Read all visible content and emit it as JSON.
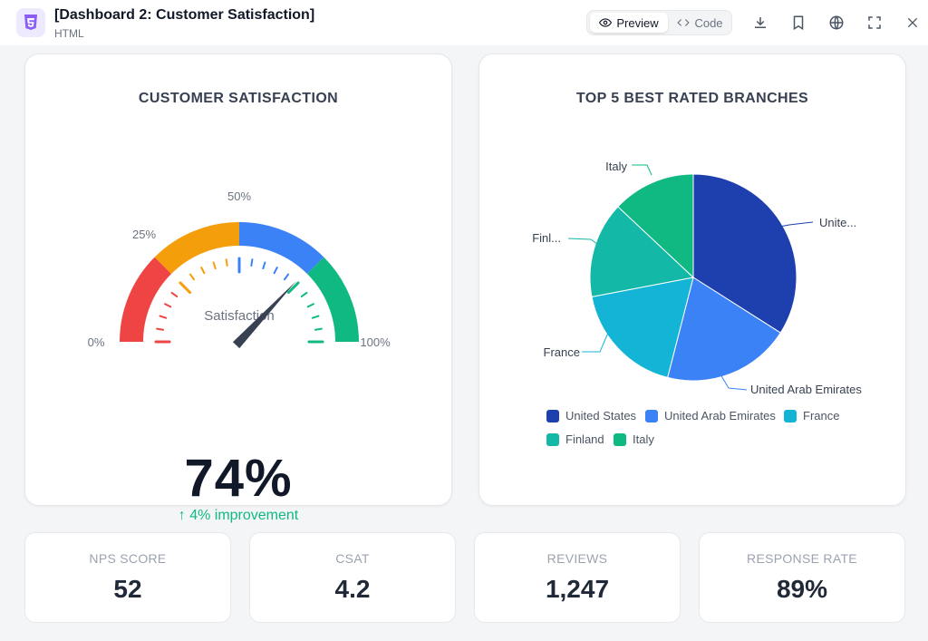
{
  "window": {
    "title": "[Dashboard 2: Customer Satisfaction]",
    "file_type": "HTML",
    "preview_label": "Preview",
    "code_label": "Code"
  },
  "gauge_card": {
    "title": "CUSTOMER SATISFACTION",
    "center_label": "Satisfaction",
    "value": 74,
    "value_text": "74%",
    "improvement_text": "↑ 4% improvement",
    "tick_labels": [
      "0%",
      "25%",
      "50%",
      "100%"
    ],
    "segment_colors": [
      "#ef4444",
      "#f59e0b",
      "#3b82f6",
      "#10b981"
    ]
  },
  "pie_card": {
    "title": "TOP 5 BEST RATED BRANCHES",
    "slice_labels": [
      "Unite...",
      "United Arab Emirates",
      "France",
      "Finl...",
      "Italy"
    ],
    "legend": [
      {
        "name": "United States",
        "color": "#1e40af"
      },
      {
        "name": "United Arab Emirates",
        "color": "#3b82f6"
      },
      {
        "name": "France",
        "color": "#14b4d6"
      },
      {
        "name": "Finland",
        "color": "#14b8a6"
      },
      {
        "name": "Italy",
        "color": "#10b981"
      }
    ]
  },
  "chart_data": {
    "type": "pie",
    "title": "TOP 5 BEST RATED BRANCHES",
    "categories": [
      "United States",
      "United Arab Emirates",
      "France",
      "Finland",
      "Italy"
    ],
    "values": [
      34,
      20,
      18,
      15,
      13
    ],
    "colors": [
      "#1e40af",
      "#3b82f6",
      "#14b4d6",
      "#14b8a6",
      "#10b981"
    ],
    "legend_placement": "bottom"
  },
  "stats": [
    {
      "label": "NPS SCORE",
      "value": "52"
    },
    {
      "label": "CSAT",
      "value": "4.2"
    },
    {
      "label": "REVIEWS",
      "value": "1,247"
    },
    {
      "label": "RESPONSE RATE",
      "value": "89%"
    }
  ]
}
